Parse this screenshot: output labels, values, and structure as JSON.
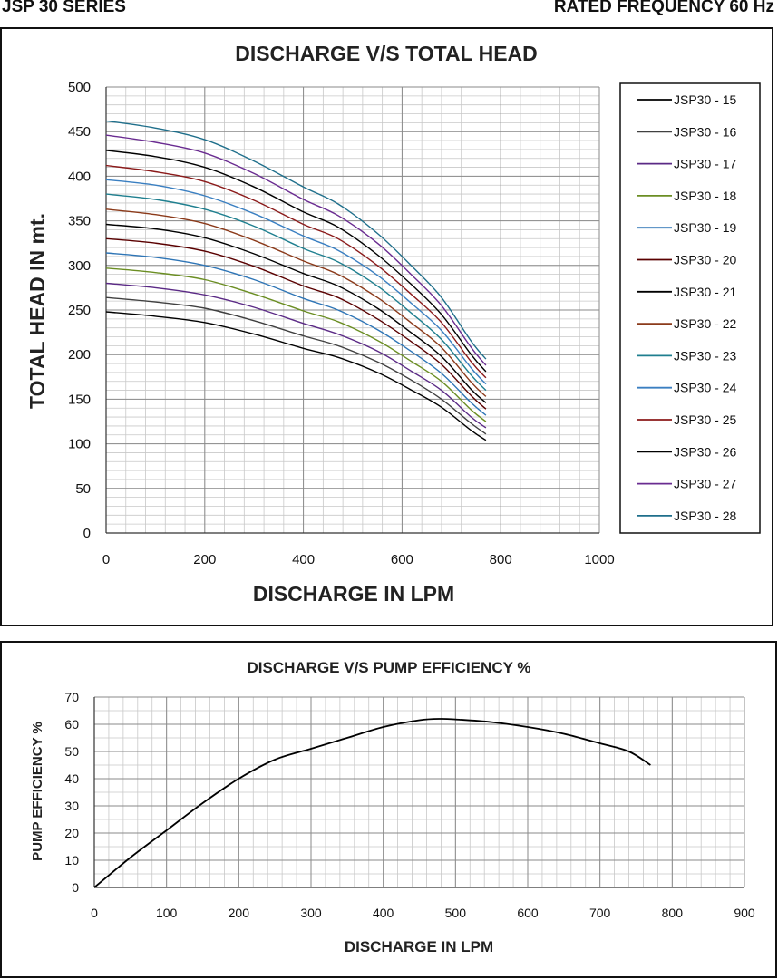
{
  "header": {
    "left": "JSP 30 SERIES",
    "right": "RATED FREQUENCY 60 Hz"
  },
  "chart_data": [
    {
      "type": "line",
      "title": "DISCHARGE V/S TOTAL HEAD",
      "xlabel": "DISCHARGE IN LPM",
      "ylabel": "TOTAL HEAD IN mt.",
      "xlim": [
        0,
        1000
      ],
      "ylim": [
        0,
        500
      ],
      "x_ticks": [
        "0",
        "200",
        "400",
        "600",
        "800",
        "1000"
      ],
      "y_ticks": [
        "0",
        "50",
        "100",
        "150",
        "200",
        "250",
        "300",
        "350",
        "400",
        "450",
        "500"
      ],
      "grid": true,
      "legend_position": "right",
      "x": [
        0,
        100,
        200,
        300,
        400,
        470,
        550,
        620,
        680,
        740,
        770
      ],
      "series": [
        {
          "name": "JSP30 - 15",
          "color": "#000000",
          "values": [
            248,
            243,
            236,
            223,
            207,
            197,
            180,
            160,
            141,
            115,
            104
          ]
        },
        {
          "name": "JSP30 - 16",
          "color": "#404040",
          "values": [
            264,
            259,
            252,
            238,
            221,
            210,
            192,
            171,
            150,
            123,
            111
          ]
        },
        {
          "name": "JSP30 - 17",
          "color": "#5b2a86",
          "values": [
            280,
            275,
            267,
            253,
            235,
            223,
            204,
            181,
            160,
            130,
            118
          ]
        },
        {
          "name": "JSP30 - 18",
          "color": "#6b8e23",
          "values": [
            297,
            292,
            284,
            268,
            249,
            237,
            216,
            192,
            170,
            138,
            125
          ]
        },
        {
          "name": "JSP30 - 19",
          "color": "#2e75b6",
          "values": [
            314,
            309,
            300,
            284,
            263,
            250,
            228,
            203,
            179,
            146,
            132
          ]
        },
        {
          "name": "JSP30 - 20",
          "color": "#5a0000",
          "values": [
            330,
            325,
            316,
            299,
            277,
            264,
            240,
            214,
            189,
            154,
            139
          ]
        },
        {
          "name": "JSP30 - 21",
          "color": "#000000",
          "values": [
            346,
            341,
            331,
            313,
            291,
            277,
            252,
            224,
            198,
            161,
            146
          ]
        },
        {
          "name": "JSP30 - 22",
          "color": "#8b3a1a",
          "values": [
            363,
            357,
            347,
            328,
            305,
            290,
            264,
            235,
            208,
            169,
            153
          ]
        },
        {
          "name": "JSP30 - 23",
          "color": "#1f7f8f",
          "values": [
            380,
            374,
            363,
            344,
            319,
            304,
            277,
            246,
            217,
            177,
            160
          ]
        },
        {
          "name": "JSP30 - 24",
          "color": "#3a7fc1",
          "values": [
            396,
            390,
            378,
            358,
            333,
            317,
            289,
            257,
            227,
            185,
            167
          ]
        },
        {
          "name": "JSP30 - 25",
          "color": "#8b1a1a",
          "values": [
            412,
            405,
            394,
            373,
            346,
            330,
            300,
            267,
            236,
            192,
            174
          ]
        },
        {
          "name": "JSP30 - 26",
          "color": "#000000",
          "values": [
            429,
            422,
            410,
            388,
            360,
            343,
            312,
            278,
            245,
            200,
            181
          ]
        },
        {
          "name": "JSP30 - 27",
          "color": "#6a2c91",
          "values": [
            446,
            438,
            426,
            403,
            374,
            356,
            325,
            289,
            255,
            208,
            188
          ]
        },
        {
          "name": "JSP30 - 28",
          "color": "#1f6f8b",
          "values": [
            462,
            454,
            441,
            417,
            388,
            369,
            336,
            299,
            264,
            215,
            195
          ]
        }
      ]
    },
    {
      "type": "line",
      "title": "DISCHARGE V/S PUMP EFFICIENCY %",
      "xlabel": "DISCHARGE IN LPM",
      "ylabel": "PUMP EFFICIENCY %",
      "xlim": [
        0,
        900
      ],
      "ylim": [
        0,
        70
      ],
      "x_ticks": [
        "0",
        "100",
        "200",
        "300",
        "400",
        "500",
        "600",
        "700",
        "800",
        "900"
      ],
      "y_ticks": [
        "0",
        "10",
        "20",
        "30",
        "40",
        "50",
        "60",
        "70"
      ],
      "grid": true,
      "x": [
        0,
        50,
        100,
        150,
        200,
        250,
        300,
        350,
        400,
        450,
        480,
        500,
        550,
        600,
        650,
        700,
        740,
        770
      ],
      "series": [
        {
          "color": "#000000",
          "values": [
            0,
            11,
            21,
            31,
            40,
            47,
            51,
            55,
            59,
            61.5,
            62,
            61.8,
            60.8,
            59,
            56.5,
            53,
            50,
            45
          ]
        }
      ]
    }
  ]
}
